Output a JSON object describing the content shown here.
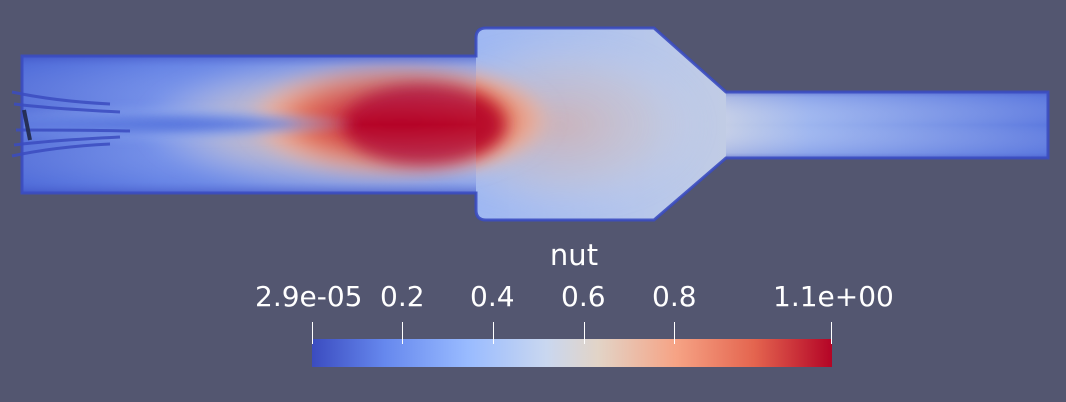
{
  "colorbar": {
    "title": "nut",
    "labels": {
      "min": "2.9e-05",
      "t1": "0.2",
      "t2": "0.4",
      "t3": "0.6",
      "t4": "0.8",
      "max": "1.1e+00"
    },
    "colormap": [
      "#3b4cc0",
      "#6688ee",
      "#99bbff",
      "#c9d7f0",
      "#e2d4c7",
      "#f6a385",
      "#e4654f",
      "#b40426"
    ]
  },
  "colors": {
    "background": "#535670",
    "domain_edge": "#3b4cc0"
  }
}
